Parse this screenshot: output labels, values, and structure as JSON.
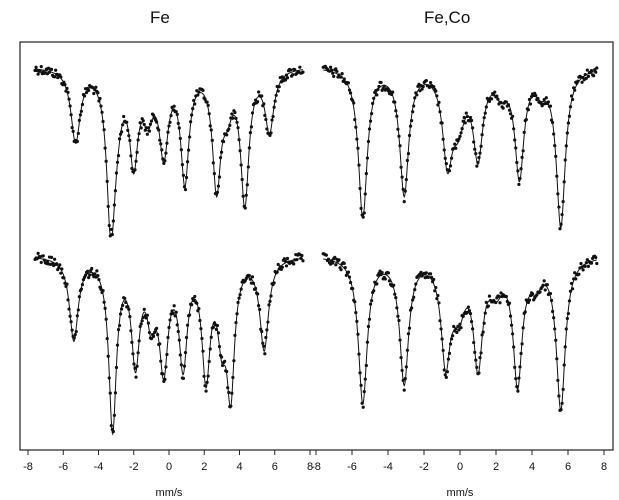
{
  "chart_data": {
    "type": "line",
    "column_titles": [
      "Fe",
      "Fe,Co"
    ],
    "xlabel": "mm/s",
    "xlim": [
      -8,
      8
    ],
    "xticks": [
      -8,
      -6,
      -4,
      -2,
      0,
      2,
      4,
      6,
      8
    ],
    "tick_labels_left": [
      "-8",
      "-6",
      "-4",
      "-2",
      "0",
      "2",
      "4",
      "6",
      "8"
    ],
    "tick_labels_right": [
      "-8",
      "-6",
      "-4",
      "-2",
      "0",
      "2",
      "4",
      "6",
      "8"
    ],
    "y_units": "relative transmission (unlabeled)",
    "panels": [
      {
        "column": "Fe",
        "row": "top",
        "peaks": [
          {
            "x": -5.3,
            "depth": 0.45,
            "width": 0.32
          },
          {
            "x": -3.3,
            "depth": 0.94,
            "width": 0.28
          },
          {
            "x": -2.0,
            "depth": 0.54,
            "width": 0.28
          },
          {
            "x": -0.3,
            "depth": 0.5,
            "width": 0.3
          },
          {
            "x": 0.9,
            "depth": 0.68,
            "width": 0.28
          },
          {
            "x": 2.7,
            "depth": 0.71,
            "width": 0.28
          },
          {
            "x": 4.3,
            "depth": 0.82,
            "width": 0.28
          },
          {
            "x": 5.7,
            "depth": 0.38,
            "width": 0.3
          },
          {
            "x": -3.0,
            "depth": 0.2,
            "width": 0.35
          },
          {
            "x": -1.2,
            "depth": 0.25,
            "width": 0.35
          },
          {
            "x": 3.3,
            "depth": 0.2,
            "width": 0.35
          }
        ]
      },
      {
        "column": "Fe,Co",
        "row": "top",
        "peaks": [
          {
            "x": -5.4,
            "depth": 0.93,
            "width": 0.3
          },
          {
            "x": -3.1,
            "depth": 0.78,
            "width": 0.3
          },
          {
            "x": -0.7,
            "depth": 0.52,
            "width": 0.32
          },
          {
            "x": -0.1,
            "depth": 0.3,
            "width": 0.45
          },
          {
            "x": 1.0,
            "depth": 0.52,
            "width": 0.32
          },
          {
            "x": 3.3,
            "depth": 0.66,
            "width": 0.3
          },
          {
            "x": 5.6,
            "depth": 0.98,
            "width": 0.3
          },
          {
            "x": 2.3,
            "depth": 0.12,
            "width": 0.4
          },
          {
            "x": 4.5,
            "depth": 0.1,
            "width": 0.4
          }
        ]
      },
      {
        "column": "Fe",
        "row": "bottom",
        "peaks": [
          {
            "x": -5.4,
            "depth": 0.47,
            "width": 0.3
          },
          {
            "x": -3.2,
            "depth": 0.97,
            "width": 0.26
          },
          {
            "x": -1.9,
            "depth": 0.57,
            "width": 0.28
          },
          {
            "x": -1.0,
            "depth": 0.3,
            "width": 0.3
          },
          {
            "x": -0.3,
            "depth": 0.59,
            "width": 0.3
          },
          {
            "x": 0.8,
            "depth": 0.58,
            "width": 0.28
          },
          {
            "x": 2.1,
            "depth": 0.65,
            "width": 0.28
          },
          {
            "x": 3.5,
            "depth": 0.72,
            "width": 0.26
          },
          {
            "x": 5.4,
            "depth": 0.52,
            "width": 0.3
          },
          {
            "x": 3.0,
            "depth": 0.38,
            "width": 0.3
          }
        ]
      },
      {
        "column": "Fe,Co",
        "row": "bottom",
        "peaks": [
          {
            "x": -5.4,
            "depth": 0.83,
            "width": 0.3
          },
          {
            "x": -3.1,
            "depth": 0.71,
            "width": 0.3
          },
          {
            "x": -0.8,
            "depth": 0.55,
            "width": 0.3
          },
          {
            "x": -0.1,
            "depth": 0.28,
            "width": 0.45
          },
          {
            "x": 1.0,
            "depth": 0.58,
            "width": 0.3
          },
          {
            "x": 3.2,
            "depth": 0.7,
            "width": 0.3
          },
          {
            "x": 5.6,
            "depth": 0.86,
            "width": 0.3
          },
          {
            "x": 2.0,
            "depth": 0.15,
            "width": 0.45
          },
          {
            "x": 4.2,
            "depth": 0.12,
            "width": 0.4
          }
        ]
      }
    ],
    "grid": false,
    "legend": "none"
  }
}
